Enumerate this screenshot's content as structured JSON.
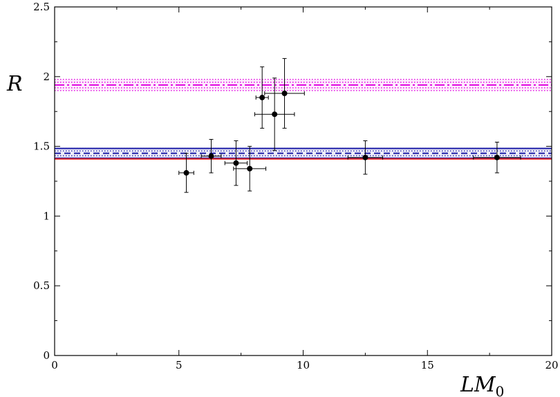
{
  "chart_data": {
    "type": "scatter",
    "title": "",
    "xlabel": "LM",
    "xlabel_subscript": "0",
    "ylabel": "R",
    "xlim": [
      0,
      20
    ],
    "ylim": [
      0,
      2.5
    ],
    "x_ticks": [
      0,
      5,
      10,
      15,
      20
    ],
    "x_tick_labels": [
      "0",
      "5",
      "10",
      "15",
      "20"
    ],
    "y_ticks": [
      0,
      0.5,
      1,
      1.5,
      2,
      2.5
    ],
    "y_tick_labels": [
      "0",
      "0.5",
      "1",
      "1.5",
      "2",
      "2.5"
    ],
    "x_minor_step": 2.5,
    "y_minor_step": 0.25,
    "grid": false,
    "points": [
      {
        "x": 5.3,
        "y": 1.31,
        "xerr": 0.3,
        "yerr": 0.14
      },
      {
        "x": 6.3,
        "y": 1.43,
        "xerr": 0.4,
        "yerr": 0.12
      },
      {
        "x": 7.3,
        "y": 1.38,
        "xerr": 0.45,
        "yerr": 0.16
      },
      {
        "x": 7.85,
        "y": 1.34,
        "xerr": 0.65,
        "yerr": 0.16
      },
      {
        "x": 8.35,
        "y": 1.85,
        "xerr": 0.25,
        "yerr": 0.22
      },
      {
        "x": 8.85,
        "y": 1.73,
        "xerr": 0.8,
        "yerr": 0.26
      },
      {
        "x": 9.25,
        "y": 1.88,
        "xerr": 0.8,
        "yerr": 0.25
      },
      {
        "x": 12.5,
        "y": 1.42,
        "xerr": 0.7,
        "yerr": 0.12
      },
      {
        "x": 17.8,
        "y": 1.42,
        "xerr": 0.95,
        "yerr": 0.11
      }
    ],
    "bands": [
      {
        "center": 1.94,
        "half_width": 0.04,
        "color": "#e000e0",
        "style": "dash-dot"
      },
      {
        "center": 1.45,
        "half_width": 0.035,
        "color": "#1a1aa6",
        "style": "dashed"
      }
    ],
    "lines": [
      {
        "y": 1.41,
        "color": "#e02020"
      }
    ]
  }
}
